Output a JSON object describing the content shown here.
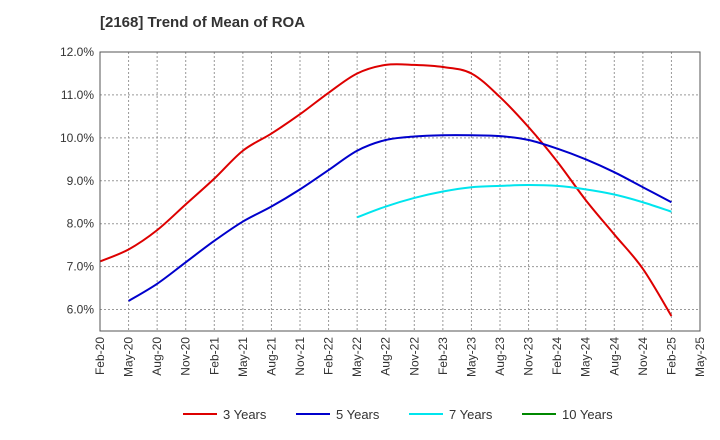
{
  "chart_data": {
    "type": "line",
    "title": "[2168]  Trend of Mean of ROA",
    "xlabel": "",
    "ylabel": "",
    "ylim": [
      5.5,
      12.0
    ],
    "y_ticks": [
      6.0,
      7.0,
      8.0,
      9.0,
      10.0,
      11.0,
      12.0
    ],
    "y_tick_labels": [
      "6.0%",
      "7.0%",
      "8.0%",
      "9.0%",
      "10.0%",
      "11.0%",
      "12.0%"
    ],
    "categories": [
      "Feb-20",
      "May-20",
      "Aug-20",
      "Nov-20",
      "Feb-21",
      "May-21",
      "Aug-21",
      "Nov-21",
      "Feb-22",
      "May-22",
      "Aug-22",
      "Nov-22",
      "Feb-23",
      "May-23",
      "Aug-23",
      "Nov-23",
      "Feb-24",
      "May-24",
      "Aug-24",
      "Nov-24",
      "Feb-25",
      "May-25"
    ],
    "grid": true,
    "legend_position": "bottom",
    "series": [
      {
        "name": "3 Years",
        "color": "#dd0000",
        "values": [
          7.12,
          7.4,
          7.85,
          8.45,
          9.05,
          9.7,
          10.1,
          10.55,
          11.05,
          11.5,
          11.7,
          11.7,
          11.65,
          11.5,
          10.95,
          10.25,
          9.45,
          8.55,
          7.75,
          6.95,
          5.85,
          null
        ]
      },
      {
        "name": "5 Years",
        "color": "#0000cc",
        "values": [
          null,
          6.2,
          6.6,
          7.1,
          7.6,
          8.05,
          8.4,
          8.8,
          9.25,
          9.7,
          9.95,
          10.03,
          10.06,
          10.06,
          10.04,
          9.95,
          9.75,
          9.5,
          9.2,
          8.85,
          8.5,
          null
        ]
      },
      {
        "name": "7 Years",
        "color": "#00e5ee",
        "values": [
          null,
          null,
          null,
          null,
          null,
          null,
          null,
          null,
          null,
          8.15,
          8.4,
          8.6,
          8.75,
          8.85,
          8.88,
          8.9,
          8.88,
          8.8,
          8.68,
          8.5,
          8.28,
          null
        ]
      },
      {
        "name": "10 Years",
        "color": "#008800",
        "values": [
          null,
          null,
          null,
          null,
          null,
          null,
          null,
          null,
          null,
          null,
          null,
          null,
          null,
          null,
          null,
          null,
          null,
          null,
          null,
          null,
          null,
          null
        ]
      }
    ]
  }
}
